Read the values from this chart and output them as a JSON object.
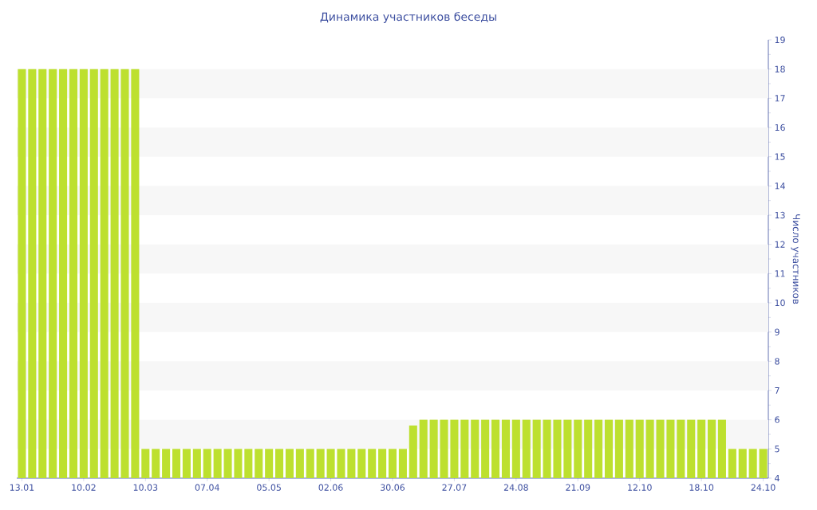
{
  "chart_data": {
    "type": "bar",
    "title": "Динамика участников беседы",
    "ylabel": "Число участников",
    "categories": [
      "13.01",
      null,
      null,
      null,
      null,
      null,
      "10.02",
      null,
      null,
      null,
      null,
      null,
      "10.03",
      null,
      null,
      null,
      null,
      null,
      "07.04",
      null,
      null,
      null,
      null,
      null,
      "05.05",
      null,
      null,
      null,
      null,
      null,
      "02.06",
      null,
      null,
      null,
      null,
      null,
      "30.06",
      null,
      null,
      null,
      null,
      null,
      "27.07",
      null,
      null,
      null,
      null,
      null,
      "24.08",
      null,
      null,
      null,
      null,
      null,
      "21.09",
      null,
      null,
      null,
      null,
      null,
      "12.10",
      null,
      null,
      null,
      null,
      null,
      "18.10",
      null,
      null,
      null,
      null,
      null,
      "24.10"
    ],
    "values": [
      18,
      18,
      18,
      18,
      18,
      18,
      18,
      18,
      18,
      18,
      18,
      18,
      5,
      5,
      5,
      5,
      5,
      5,
      5,
      5,
      5,
      5,
      5,
      5,
      5,
      5,
      5,
      5,
      5,
      5,
      5,
      5,
      5,
      5,
      5,
      5,
      5,
      5,
      5.8,
      6,
      6,
      6,
      6,
      6,
      6,
      6,
      6,
      6,
      6,
      6,
      6,
      6,
      6,
      6,
      6,
      6,
      6,
      6,
      6,
      6,
      6,
      6,
      6,
      6,
      6,
      6,
      6,
      6,
      6,
      5,
      5,
      5,
      5
    ],
    "color": "#bde02f",
    "ylim": [
      4,
      19
    ],
    "yticks": [
      4,
      5,
      6,
      7,
      8,
      9,
      10,
      11,
      12,
      13,
      14,
      15,
      16,
      17,
      18,
      19
    ],
    "bands": [
      {
        "axis": "y",
        "from": 5,
        "to": 6,
        "color": "#f7f7f7"
      },
      {
        "axis": "y",
        "from": 7,
        "to": 8,
        "color": "#f7f7f7"
      },
      {
        "axis": "y",
        "from": 9,
        "to": 10,
        "color": "#f7f7f7"
      },
      {
        "axis": "y",
        "from": 11,
        "to": 12,
        "color": "#f7f7f7"
      },
      {
        "axis": "y",
        "from": 13,
        "to": 14,
        "color": "#f7f7f7"
      },
      {
        "axis": "y",
        "from": 15,
        "to": 16,
        "color": "#f7f7f7"
      },
      {
        "axis": "y",
        "from": 17,
        "to": 18,
        "color": "#f7f7f7"
      }
    ]
  }
}
